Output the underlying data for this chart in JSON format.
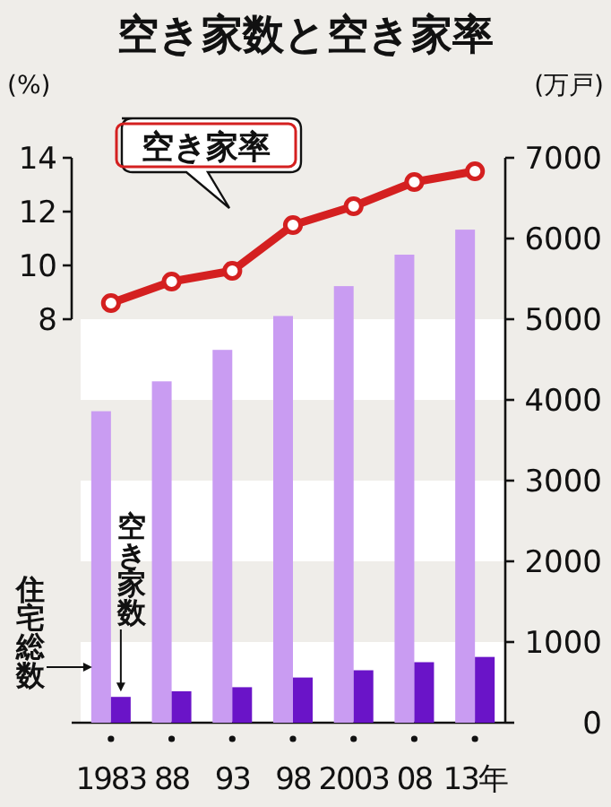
{
  "chart_data": {
    "type": "bar",
    "title": "空き家数と空き家率",
    "ylabel": "(%)",
    "y2label": "(万戸)",
    "categories": [
      "1983",
      "88",
      "93",
      "98",
      "2003",
      "08",
      "13年"
    ],
    "series": [
      {
        "name": "住宅総数",
        "color": "#c99cf2",
        "axis": "y2",
        "values": [
          3860,
          4230,
          4620,
          5040,
          5410,
          5800,
          6110
        ]
      },
      {
        "name": "空き家数",
        "color": "#6a14c8",
        "axis": "y2",
        "values": [
          320,
          390,
          440,
          560,
          650,
          750,
          815
        ]
      },
      {
        "name": "空き家率",
        "type": "line",
        "color": "#d42020",
        "values": [
          8.6,
          9.4,
          9.8,
          11.5,
          12.2,
          13.1,
          13.5
        ]
      }
    ],
    "marker": "circle",
    "ylim": [
      -7,
      14
    ],
    "yticks": [
      8,
      10,
      12,
      14
    ],
    "y2lim": [
      0,
      7000
    ],
    "y2ticks": [
      0,
      1000,
      2000,
      3000,
      4000,
      5000,
      6000,
      7000
    ],
    "bands": [
      {
        "axis": "y2",
        "from": 0,
        "to": 1000,
        "color": "#ffffff"
      },
      {
        "axis": "y2",
        "from": 2000,
        "to": 3000,
        "color": "#ffffff"
      },
      {
        "axis": "y2",
        "from": 4000,
        "to": 5000,
        "color": "#ffffff"
      }
    ]
  }
}
